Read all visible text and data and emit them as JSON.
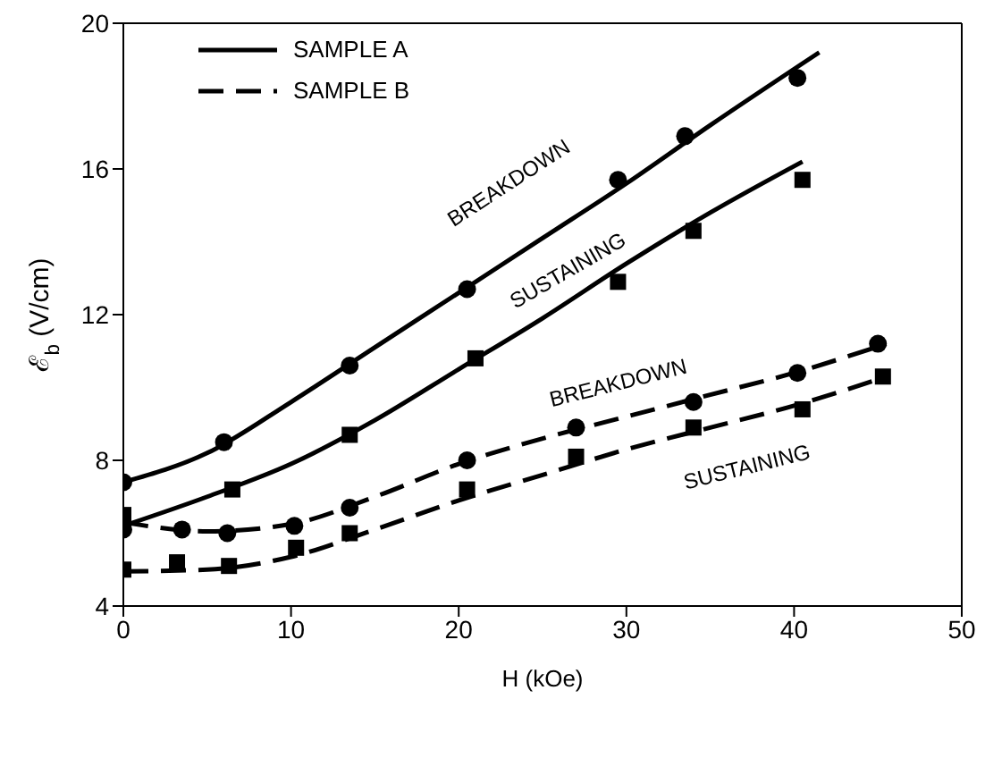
{
  "chart_data": {
    "type": "scatter",
    "xlabel": "H (kOe)",
    "ylabel": "ℰ$_{b}$ (V/cm)",
    "xlim": [
      0,
      50
    ],
    "xticks": [
      0,
      10,
      20,
      30,
      40,
      50
    ],
    "ylim": [
      4,
      20
    ],
    "yticks": [
      4,
      8,
      12,
      16,
      20
    ],
    "legend": "top left",
    "series": [
      {
        "type": "line",
        "name": "SAMPLE A",
        "color": "#000000",
        "line_style": "solid",
        "marker": "none",
        "x": [
          0,
          5,
          10,
          15,
          20,
          25,
          30,
          35,
          41.5
        ],
        "values": [
          7.4,
          8.2,
          9.6,
          11.1,
          12.6,
          14.1,
          15.6,
          17.2,
          19.2
        ]
      },
      {
        "type": "line",
        "color": "#000000",
        "line_style": "solid",
        "marker": "none",
        "x": [
          0,
          5,
          10,
          15,
          20,
          25,
          30,
          35,
          40.5
        ],
        "values": [
          6.2,
          7.0,
          7.9,
          9.1,
          10.5,
          11.9,
          13.4,
          14.8,
          16.2
        ]
      },
      {
        "type": "line",
        "name": "SAMPLE B",
        "color": "#000000",
        "line_style": "dashed",
        "marker": "none",
        "x": [
          0,
          5,
          10,
          15,
          20,
          25,
          30,
          35,
          40,
          45.5
        ],
        "values": [
          6.3,
          6.05,
          6.25,
          7.0,
          7.9,
          8.6,
          9.2,
          9.8,
          10.4,
          11.2
        ]
      },
      {
        "type": "line",
        "color": "#000000",
        "line_style": "dashed",
        "marker": "none",
        "x": [
          0,
          5,
          10,
          15,
          20,
          25,
          30,
          35,
          40,
          45.5
        ],
        "values": [
          4.95,
          5.0,
          5.35,
          6.1,
          6.9,
          7.6,
          8.3,
          8.9,
          9.5,
          10.3
        ]
      },
      {
        "color": "#000000",
        "marker": "circle",
        "x": [
          0,
          6,
          13.5,
          20.5,
          29.5,
          33.5,
          40.2
        ],
        "values": [
          7.4,
          8.5,
          10.6,
          12.7,
          15.7,
          16.9,
          18.5
        ]
      },
      {
        "color": "#000000",
        "marker": "square",
        "x": [
          0,
          6.5,
          13.5,
          21,
          29.5,
          34,
          40.5
        ],
        "values": [
          6.5,
          7.2,
          8.7,
          10.8,
          12.9,
          14.3,
          15.7
        ]
      },
      {
        "color": "#000000",
        "marker": "circle",
        "x": [
          0,
          3.5,
          6.2,
          10.2,
          13.5,
          20.5,
          27,
          34,
          40.2,
          45
        ],
        "values": [
          6.1,
          6.1,
          6.0,
          6.2,
          6.7,
          8.0,
          8.9,
          9.6,
          10.4,
          11.2
        ]
      },
      {
        "color": "#000000",
        "marker": "square",
        "x": [
          0,
          3.2,
          6.3,
          10.3,
          13.5,
          20.5,
          27,
          34,
          40.5,
          45.3
        ],
        "values": [
          5.0,
          5.2,
          5.1,
          5.6,
          6.0,
          7.2,
          8.1,
          8.9,
          9.4,
          10.3
        ]
      }
    ],
    "annotations": [
      "BREAKDOWN",
      "SUSTAINING",
      "BREAKDOWN",
      "SUSTAINING"
    ]
  }
}
